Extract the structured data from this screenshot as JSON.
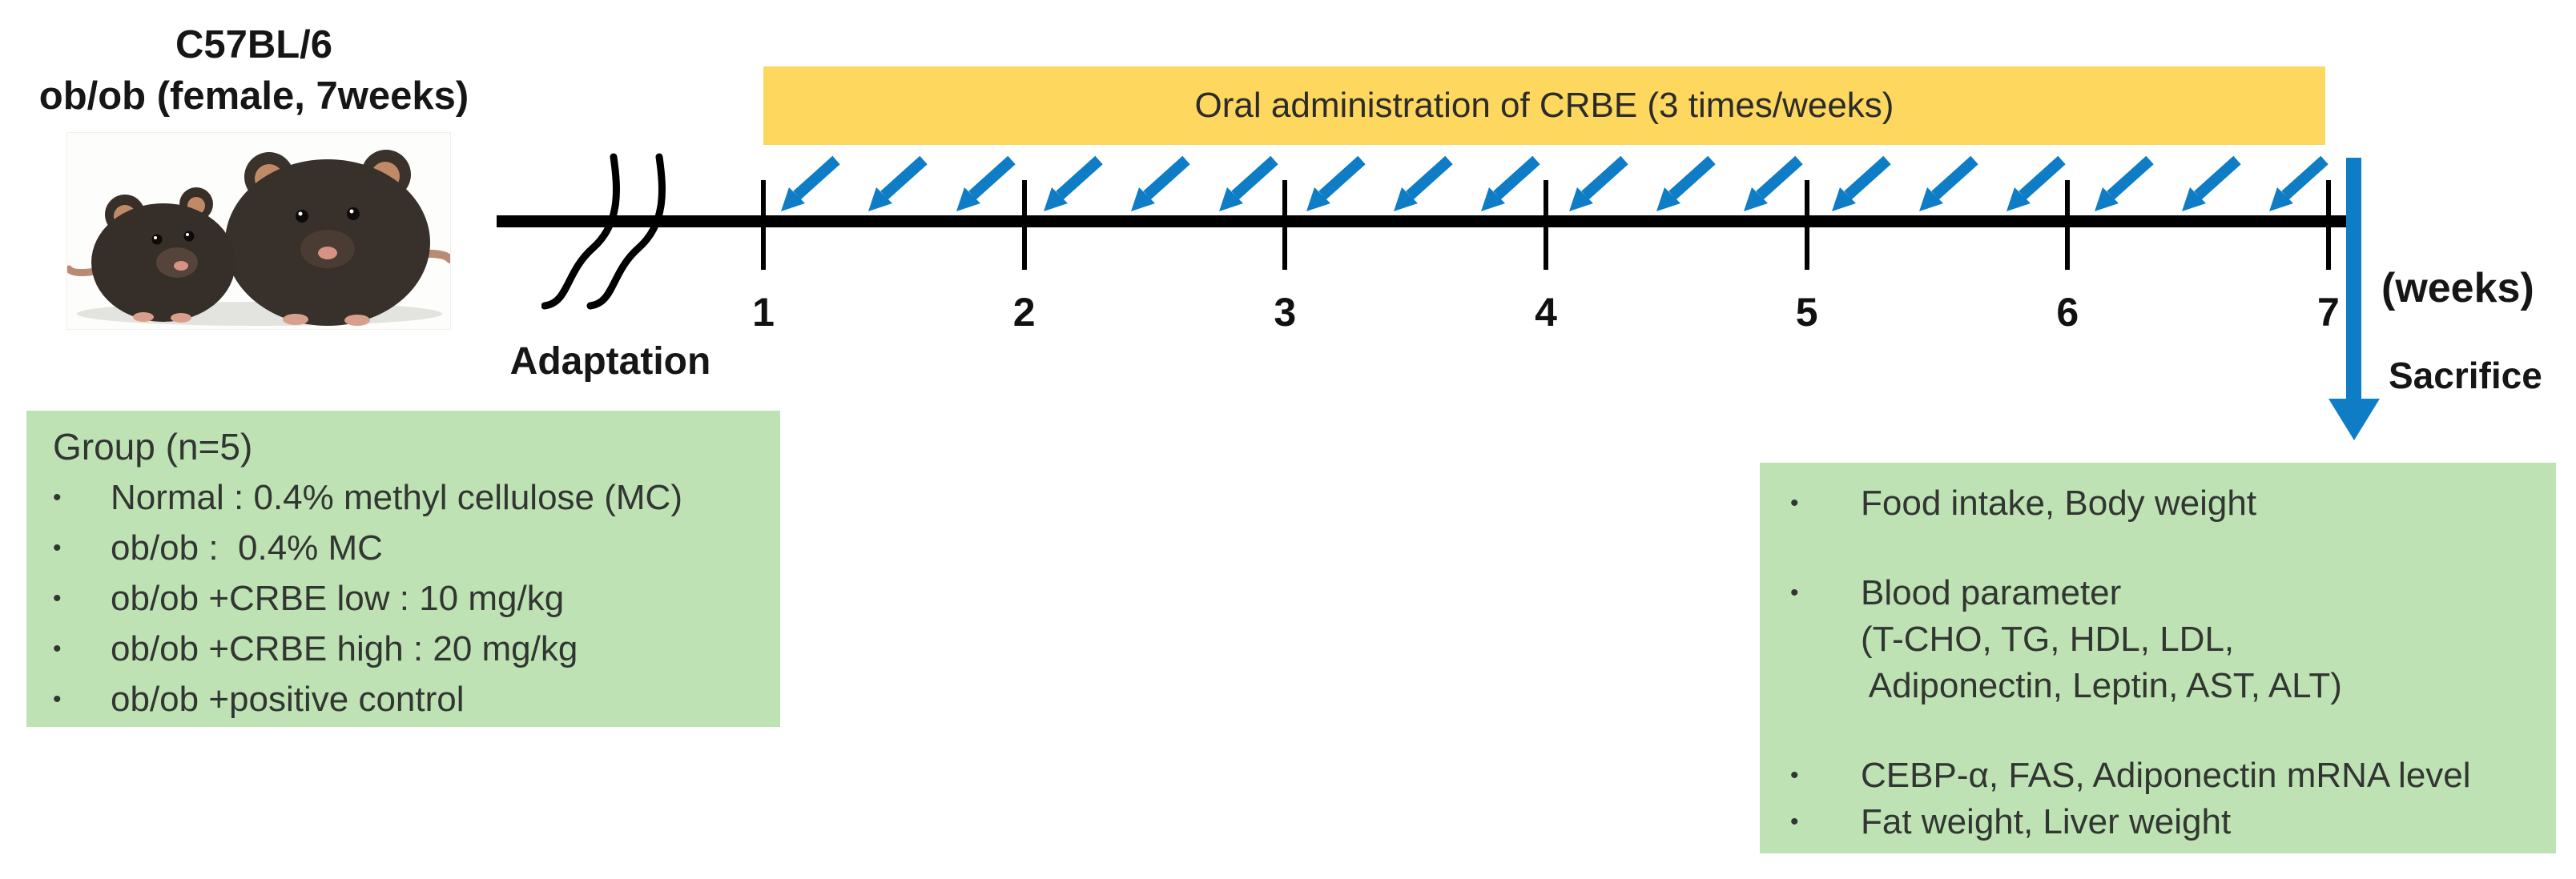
{
  "colors": {
    "banner_bg": "#FDD75E",
    "box_bg": "#BEE2B4",
    "arrow_blue": "#0E7DC6",
    "timeline_black": "#000000"
  },
  "subject": {
    "line1": "C57BL/6",
    "line2": "ob/ob (female, 7weeks)",
    "photo_alt": "two C57BL/6 mice, lean and obese ob/ob"
  },
  "timeline": {
    "banner_label": "Oral administration of CRBE (3 times/weeks)",
    "adaptation_label": "Adaptation",
    "week_labels": [
      "1",
      "2",
      "3",
      "4",
      "5",
      "6",
      "7"
    ],
    "unit_label": "(weeks)",
    "sacrifice_label": "Sacrifice",
    "injection_arrow_count": 18
  },
  "group_box": {
    "title": "Group (n=5)",
    "items": [
      {
        "bullet": "•",
        "text": "Normal : 0.4% methyl cellulose (MC)"
      },
      {
        "bullet": "•",
        "text": "ob/ob :  0.4% MC"
      },
      {
        "bullet": "•",
        "text": "ob/ob +CRBE low : 10 mg/kg"
      },
      {
        "bullet": "•",
        "text": "ob/ob +CRBE high : 20 mg/kg"
      },
      {
        "bullet": "•",
        "text": "ob/ob +positive control"
      }
    ]
  },
  "measurement_box": {
    "items": [
      {
        "bullet": "•",
        "text": "Food intake, Body weight",
        "gap": false
      },
      {
        "bullet": "•",
        "text": "Blood parameter",
        "gap": true
      },
      {
        "bullet": "",
        "text": "(T-CHO, TG, HDL, LDL,",
        "gap": false
      },
      {
        "bullet": "",
        "text": " Adiponectin, Leptin, AST, ALT)",
        "gap": false
      },
      {
        "bullet": "•",
        "text": "CEBP-α, FAS, Adiponectin mRNA level",
        "gap": true
      },
      {
        "bullet": "•",
        "text": "Fat weight, Liver weight",
        "gap": false
      }
    ]
  }
}
